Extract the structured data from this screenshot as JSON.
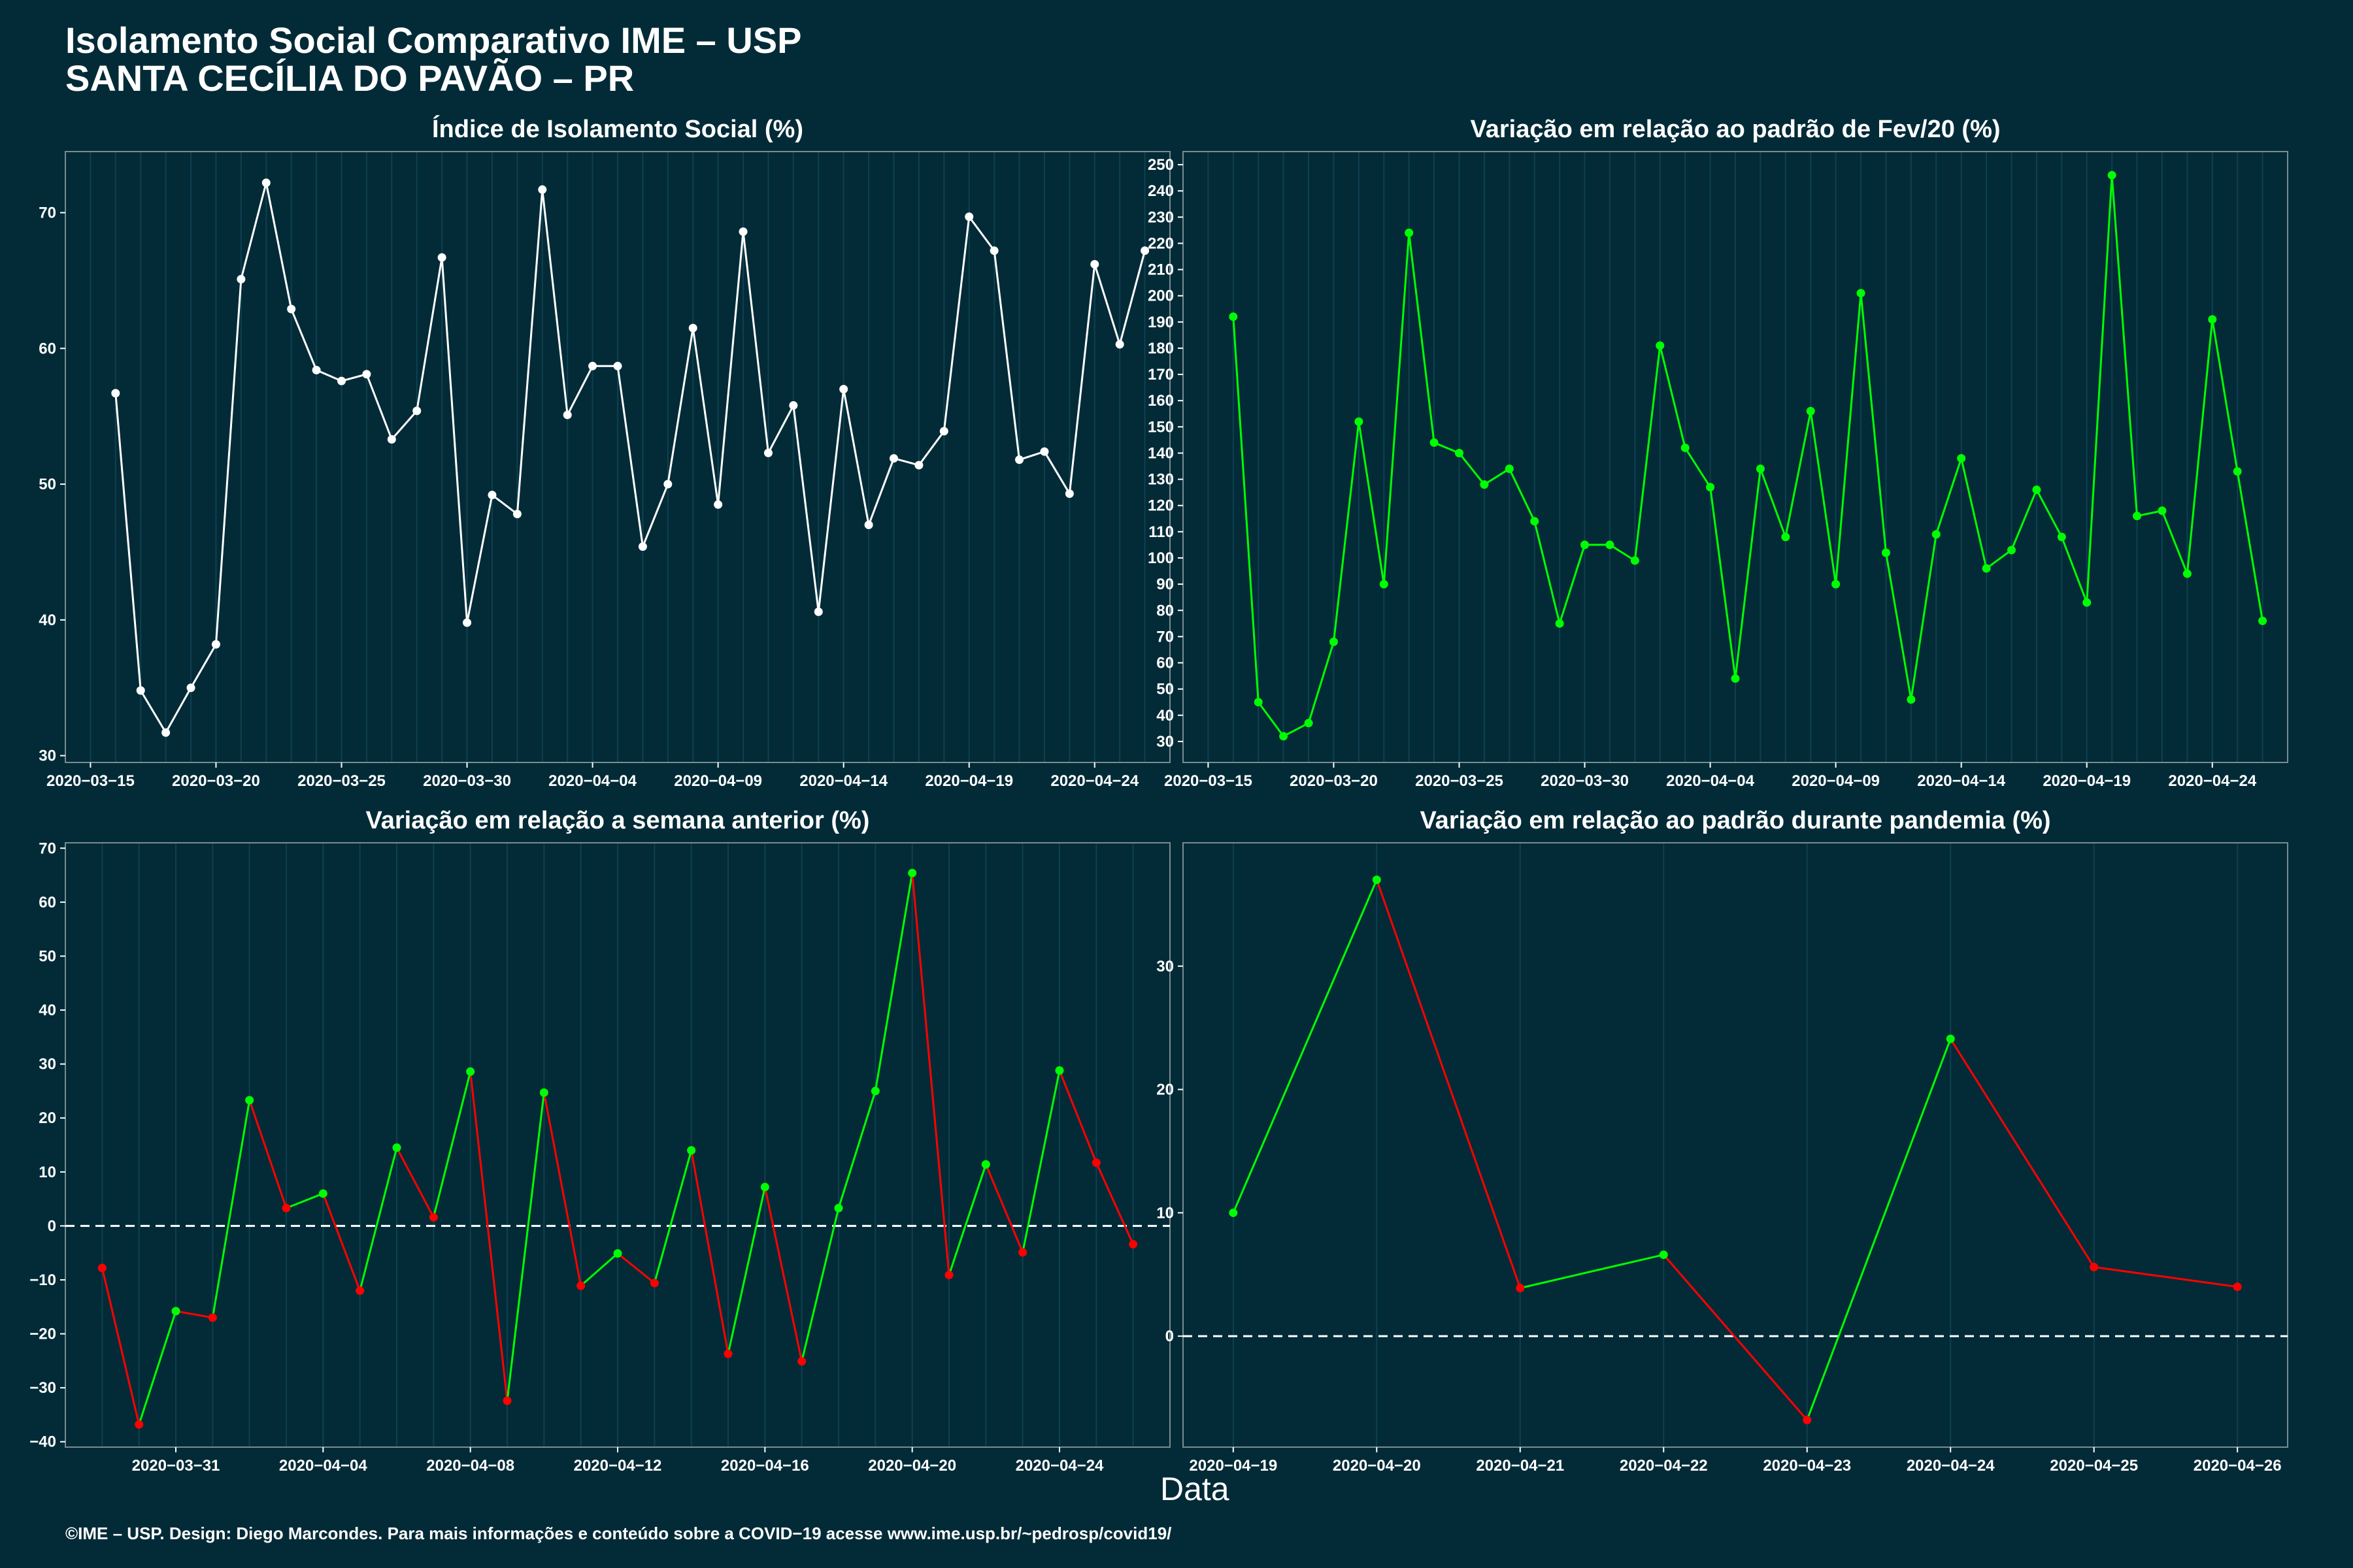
{
  "header": {
    "title_line1": "Isolamento Social Comparativo IME – USP",
    "title_line2": "SANTA CECÍLIA DO PAVÃO – PR"
  },
  "x_axis_label": "Data",
  "footer": "©IME – USP. Design: Diego Marcondes. Para mais informações e conteúdo sobre a COVID−19 acesse www.ime.usp.br/~pedrosp/covid19/",
  "colors": {
    "background": "#022b37",
    "white": "#ffffff",
    "green": "#00ff00",
    "red": "#ff0000",
    "grid": "#0f4050"
  },
  "chart_data": [
    {
      "type": "line",
      "title": "Índice de Isolamento Social (%)",
      "color": "white",
      "x": [
        "2020-03-16",
        "2020-03-17",
        "2020-03-18",
        "2020-03-19",
        "2020-03-20",
        "2020-03-21",
        "2020-03-22",
        "2020-03-23",
        "2020-03-24",
        "2020-03-25",
        "2020-03-26",
        "2020-03-27",
        "2020-03-28",
        "2020-03-29",
        "2020-03-30",
        "2020-03-31",
        "2020-04-01",
        "2020-04-02",
        "2020-04-03",
        "2020-04-04",
        "2020-04-05",
        "2020-04-06",
        "2020-04-07",
        "2020-04-08",
        "2020-04-09",
        "2020-04-10",
        "2020-04-11",
        "2020-04-12",
        "2020-04-13",
        "2020-04-14",
        "2020-04-15",
        "2020-04-16",
        "2020-04-17",
        "2020-04-18",
        "2020-04-19",
        "2020-04-20",
        "2020-04-21",
        "2020-04-22",
        "2020-04-23",
        "2020-04-24",
        "2020-04-25",
        "2020-04-26"
      ],
      "values": [
        56.7,
        34.8,
        31.7,
        35.0,
        38.2,
        65.1,
        72.2,
        62.9,
        58.4,
        57.6,
        58.1,
        53.3,
        55.4,
        66.7,
        39.8,
        49.2,
        47.8,
        71.7,
        55.1,
        58.7,
        58.7,
        45.4,
        50.0,
        61.5,
        48.5,
        68.6,
        52.3,
        55.8,
        40.6,
        57.0,
        47.0,
        51.9,
        51.4,
        53.9,
        69.7,
        67.2,
        51.8,
        52.4,
        49.3,
        66.2,
        60.3,
        67.2
      ],
      "ylim": [
        29.5,
        74.5
      ],
      "yticks": [
        30,
        40,
        50,
        60,
        70
      ],
      "xticks": [
        "2020-03-15",
        "2020-03-20",
        "2020-03-25",
        "2020-03-30",
        "2020-04-04",
        "2020-04-09",
        "2020-04-14",
        "2020-04-19",
        "2020-04-24"
      ],
      "xlim": [
        "2020-03-14",
        "2020-04-27"
      ]
    },
    {
      "type": "line",
      "title": "Variação em relação ao padrão de Fev/20 (%)",
      "color": "green",
      "x": [
        "2020-03-16",
        "2020-03-17",
        "2020-03-18",
        "2020-03-19",
        "2020-03-20",
        "2020-03-21",
        "2020-03-22",
        "2020-03-23",
        "2020-03-24",
        "2020-03-25",
        "2020-03-26",
        "2020-03-27",
        "2020-03-28",
        "2020-03-29",
        "2020-03-30",
        "2020-03-31",
        "2020-04-01",
        "2020-04-02",
        "2020-04-03",
        "2020-04-04",
        "2020-04-05",
        "2020-04-06",
        "2020-04-07",
        "2020-04-08",
        "2020-04-09",
        "2020-04-10",
        "2020-04-11",
        "2020-04-12",
        "2020-04-13",
        "2020-04-14",
        "2020-04-15",
        "2020-04-16",
        "2020-04-17",
        "2020-04-18",
        "2020-04-19",
        "2020-04-20",
        "2020-04-21",
        "2020-04-22",
        "2020-04-23",
        "2020-04-24",
        "2020-04-25",
        "2020-04-26"
      ],
      "values": [
        192,
        45,
        32,
        37,
        68,
        152,
        90,
        224,
        144,
        140,
        128,
        134,
        114,
        75,
        105,
        105,
        99,
        181,
        142,
        127,
        54,
        134,
        108,
        156,
        90,
        201,
        102,
        46,
        109,
        138,
        96,
        103,
        126,
        108,
        83,
        246,
        116,
        118,
        94,
        191,
        133,
        76
      ],
      "ylim": [
        22,
        255
      ],
      "yticks": [
        30,
        40,
        50,
        60,
        70,
        80,
        90,
        100,
        110,
        120,
        130,
        140,
        150,
        160,
        170,
        180,
        190,
        200,
        210,
        220,
        230,
        240,
        250
      ],
      "xticks": [
        "2020-03-15",
        "2020-03-20",
        "2020-03-25",
        "2020-03-30",
        "2020-04-04",
        "2020-04-09",
        "2020-04-14",
        "2020-04-19",
        "2020-04-24"
      ],
      "xlim": [
        "2020-03-14",
        "2020-04-27"
      ]
    },
    {
      "type": "line",
      "title": "Variação em relação a semana anterior (%)",
      "color_rule": "green when rising, red when falling",
      "x": [
        "2020-03-29",
        "2020-03-30",
        "2020-03-31",
        "2020-04-01",
        "2020-04-02",
        "2020-04-03",
        "2020-04-04",
        "2020-04-05",
        "2020-04-06",
        "2020-04-07",
        "2020-04-08",
        "2020-04-09",
        "2020-04-10",
        "2020-04-11",
        "2020-04-12",
        "2020-04-13",
        "2020-04-14",
        "2020-04-15",
        "2020-04-16",
        "2020-04-17",
        "2020-04-18",
        "2020-04-19",
        "2020-04-20",
        "2020-04-21",
        "2020-04-22",
        "2020-04-23",
        "2020-04-24",
        "2020-04-25",
        "2020-04-26"
      ],
      "values": [
        -7.8,
        -36.8,
        -15.8,
        -17.0,
        23.3,
        3.3,
        6.0,
        -12.0,
        14.5,
        1.6,
        28.6,
        -32.4,
        24.7,
        -11.1,
        -5.1,
        -10.6,
        14.0,
        -23.7,
        7.2,
        -25.1,
        3.3,
        25.0,
        65.4,
        -9.1,
        11.4,
        -4.9,
        28.8,
        11.7,
        -3.4
      ],
      "ylim": [
        -41,
        71
      ],
      "yticks": [
        -40,
        -30,
        -20,
        -10,
        0,
        10,
        20,
        30,
        40,
        50,
        60,
        70
      ],
      "xticks": [
        "2020-03-31",
        "2020-04-04",
        "2020-04-08",
        "2020-04-12",
        "2020-04-16",
        "2020-04-20",
        "2020-04-24"
      ],
      "xlim": [
        "2020-03-28",
        "2020-04-27"
      ],
      "reference_line": 0
    },
    {
      "type": "line",
      "title": "Variação em relação ao padrão durante pandemia (%)",
      "color_rule": "green when rising, red when falling",
      "x": [
        "2020-04-19",
        "2020-04-20",
        "2020-04-21",
        "2020-04-22",
        "2020-04-23",
        "2020-04-24",
        "2020-04-25",
        "2020-04-26"
      ],
      "values": [
        10.0,
        37.0,
        3.9,
        6.6,
        -6.8,
        24.1,
        5.6,
        4.0
      ],
      "ylim": [
        -9,
        40
      ],
      "yticks": [
        0,
        10,
        20,
        30
      ],
      "xticks": [
        "2020-04-19",
        "2020-04-20",
        "2020-04-21",
        "2020-04-22",
        "2020-04-23",
        "2020-04-24",
        "2020-04-25",
        "2020-04-26"
      ],
      "xlim": [
        "2020-04-18.65",
        "2020-04-26.35"
      ],
      "reference_line": 0
    }
  ]
}
